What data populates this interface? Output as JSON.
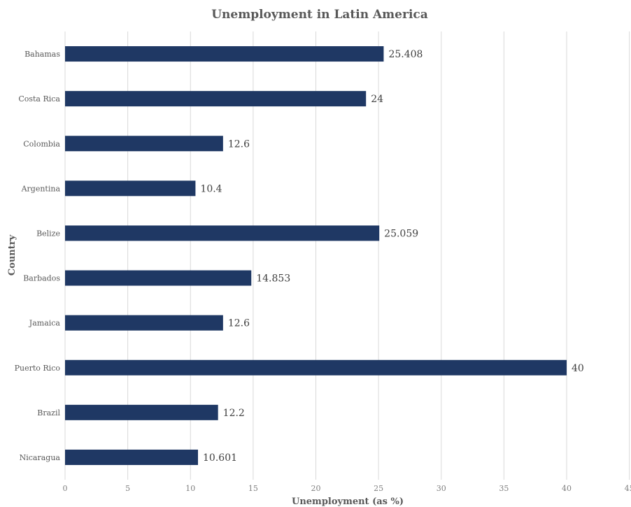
{
  "chart_data": {
    "type": "bar",
    "orientation": "horizontal",
    "title": "Unemployment in Latin America",
    "xlabel": "Unemployment (as %)",
    "ylabel": "Country",
    "categories": [
      "Bahamas",
      "Costa Rica",
      "Colombia",
      "Argentina",
      "Belize",
      "Barbados",
      "Jamaica",
      "Puerto Rico",
      "Brazil",
      "Nicaragua"
    ],
    "values": [
      25.408,
      24,
      12.6,
      10.4,
      25.059,
      14.853,
      12.6,
      40,
      12.2,
      10.601
    ],
    "data_labels": [
      "25.408",
      "24",
      "12.6",
      "10.4",
      "25.059",
      "14.853",
      "12.6",
      "40",
      "12.2",
      "10.601"
    ],
    "xlim": [
      0,
      45
    ],
    "xticks": [
      0,
      5,
      10,
      15,
      20,
      25,
      30,
      35,
      40,
      45
    ],
    "grid": true,
    "legend": "none",
    "bar_color": "#1f3864"
  }
}
